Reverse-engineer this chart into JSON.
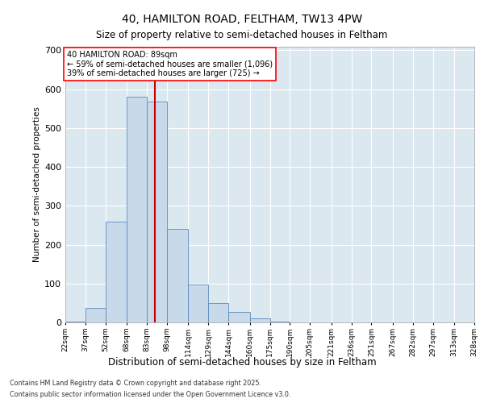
{
  "title_line1": "40, HAMILTON ROAD, FELTHAM, TW13 4PW",
  "title_line2": "Size of property relative to semi-detached houses in Feltham",
  "xlabel": "Distribution of semi-detached houses by size in Feltham",
  "ylabel": "Number of semi-detached properties",
  "bar_color": "#c8d9ea",
  "bar_edge_color": "#5a8abf",
  "bin_labels": [
    "22sqm",
    "37sqm",
    "52sqm",
    "68sqm",
    "83sqm",
    "98sqm",
    "114sqm",
    "129sqm",
    "144sqm",
    "160sqm",
    "175sqm",
    "190sqm",
    "205sqm",
    "221sqm",
    "236sqm",
    "251sqm",
    "267sqm",
    "282sqm",
    "297sqm",
    "313sqm",
    "328sqm"
  ],
  "bar_heights": [
    2,
    37,
    260,
    580,
    567,
    241,
    97,
    50,
    27,
    10,
    2,
    0,
    0,
    0,
    0,
    0,
    0,
    0,
    0,
    0
  ],
  "bin_edges": [
    22,
    37,
    52,
    68,
    83,
    98,
    114,
    129,
    144,
    160,
    175,
    190,
    205,
    221,
    236,
    251,
    267,
    282,
    297,
    313,
    328
  ],
  "ylim": [
    0,
    710
  ],
  "yticks": [
    0,
    100,
    200,
    300,
    400,
    500,
    600,
    700
  ],
  "property_line_x": 89,
  "annotation_text_line1": "40 HAMILTON ROAD: 89sqm",
  "annotation_text_line2": "← 59% of semi-detached houses are smaller (1,096)",
  "annotation_text_line3": "39% of semi-detached houses are larger (725) →",
  "red_line_color": "#cc0000",
  "footer_line1": "Contains HM Land Registry data © Crown copyright and database right 2025.",
  "footer_line2": "Contains public sector information licensed under the Open Government Licence v3.0.",
  "plot_bg_color": "#dce8f0",
  "grid_color": "white"
}
